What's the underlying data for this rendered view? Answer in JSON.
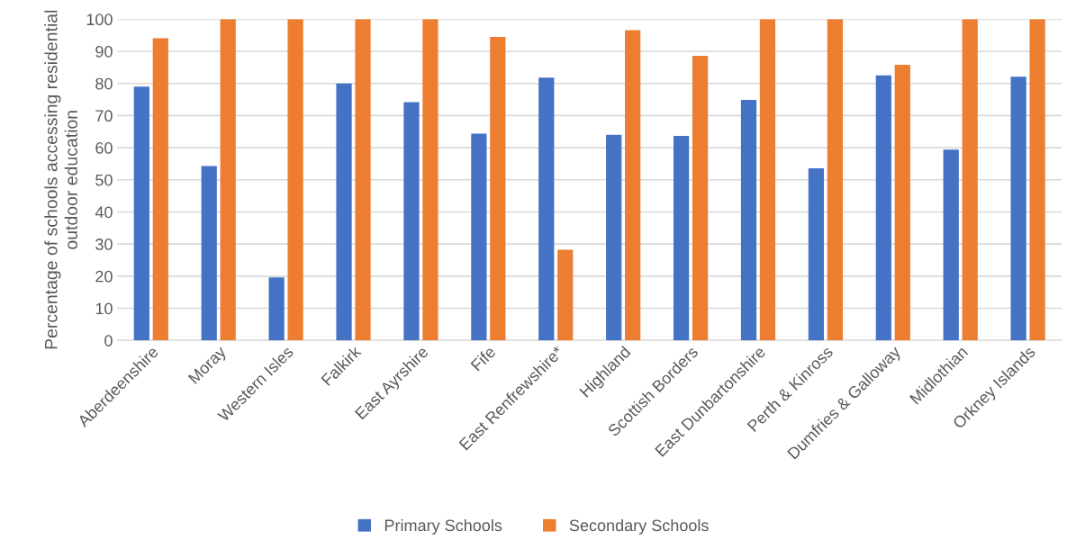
{
  "chart_data": {
    "type": "bar",
    "ylabel": "Percentage of schools accessing residential\noutdoor education",
    "categories": [
      "Aberdeenshire",
      "Moray",
      "Western Isles",
      "Falkirk",
      "East Ayrshire",
      "Fife",
      "East Renfrewshire*",
      "Highland",
      "Scottish Borders",
      "East Dunbartonshire",
      "Perth & Kinross",
      "Dumfries & Galloway",
      "Midlothian",
      "Orkney Islands"
    ],
    "series": [
      {
        "name": "Primary Schools",
        "color": "#4472c4",
        "values": [
          79,
          54.3,
          19.6,
          80,
          74.2,
          64.4,
          81.8,
          64,
          63.7,
          74.9,
          53.6,
          82.5,
          59.4,
          82.1
        ]
      },
      {
        "name": "Secondary Schools",
        "color": "#ed7d31",
        "values": [
          94.1,
          100,
          100,
          100,
          100,
          94.5,
          28.2,
          96.6,
          88.6,
          100,
          100,
          85.8,
          100,
          100
        ]
      }
    ],
    "ylim": [
      0,
      100
    ],
    "yticks": [
      0,
      10,
      20,
      30,
      40,
      50,
      60,
      70,
      80,
      90,
      100
    ],
    "grid": "y",
    "legend": "bottom"
  }
}
